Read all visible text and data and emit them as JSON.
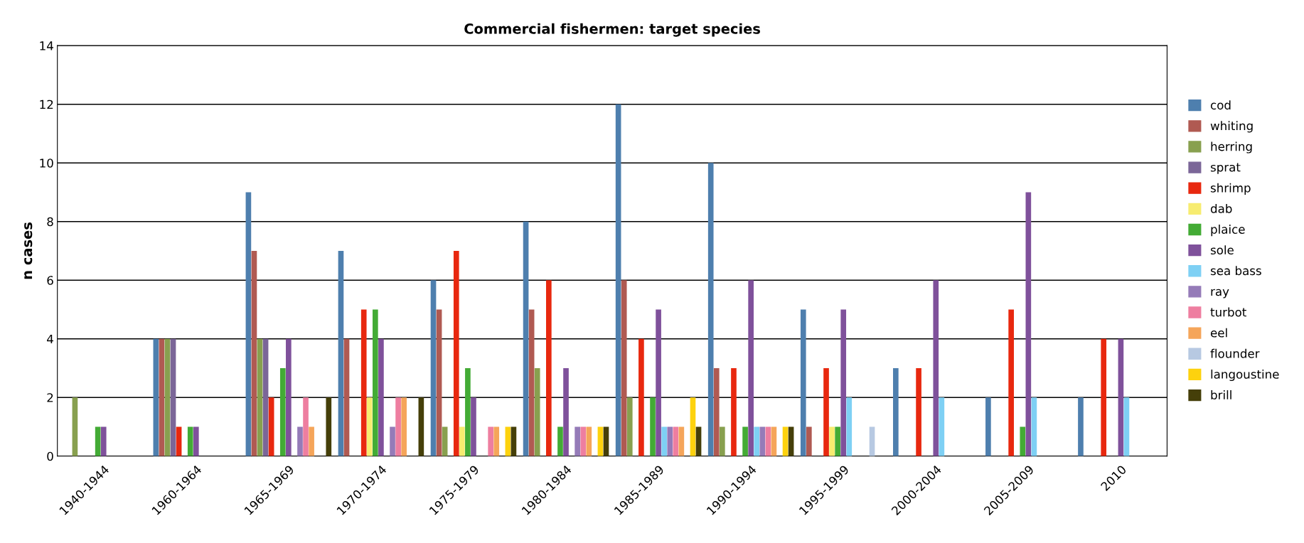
{
  "chart_data": {
    "type": "bar",
    "title": "Commercial fishermen: target species",
    "ylabel": "n cases",
    "categories": [
      "1940-1944",
      "1960-1964",
      "1965-1969",
      "1970-1974",
      "1975-1979",
      "1980-1984",
      "1985-1989",
      "1990-1994",
      "1995-1999",
      "2000-2004",
      "2005-2009",
      "2010"
    ],
    "ylim": [
      0,
      14
    ],
    "yticks": [
      0,
      2,
      4,
      6,
      8,
      10,
      12,
      14
    ],
    "grid": "y",
    "legend": "right",
    "series": [
      {
        "name": "cod",
        "color": "#4e7fae",
        "values": [
          null,
          4,
          9,
          7,
          6,
          8,
          12,
          10,
          5,
          3,
          2,
          2
        ]
      },
      {
        "name": "whiting",
        "color": "#b05a52",
        "values": [
          null,
          4,
          7,
          4,
          5,
          5,
          6,
          3,
          1,
          null,
          null,
          null
        ]
      },
      {
        "name": "herring",
        "color": "#88a04f",
        "values": [
          2,
          4,
          4,
          null,
          1,
          3,
          2,
          1,
          null,
          null,
          null,
          null
        ]
      },
      {
        "name": "sprat",
        "color": "#7b6698",
        "values": [
          null,
          4,
          4,
          null,
          null,
          null,
          null,
          null,
          null,
          null,
          null,
          null
        ]
      },
      {
        "name": "shrimp",
        "color": "#e8280f",
        "values": [
          null,
          1,
          2,
          5,
          7,
          6,
          4,
          3,
          3,
          3,
          5,
          4
        ]
      },
      {
        "name": "dab",
        "color": "#f7ec70",
        "values": [
          null,
          null,
          null,
          2,
          1,
          null,
          null,
          null,
          1,
          null,
          null,
          null
        ]
      },
      {
        "name": "plaice",
        "color": "#43ab35",
        "values": [
          1,
          1,
          3,
          5,
          3,
          1,
          2,
          1,
          1,
          null,
          1,
          null
        ]
      },
      {
        "name": "sole",
        "color": "#7f519b",
        "values": [
          1,
          1,
          4,
          4,
          2,
          3,
          5,
          6,
          5,
          6,
          9,
          4
        ]
      },
      {
        "name": "sea bass",
        "color": "#7ed0f4",
        "values": [
          null,
          null,
          null,
          null,
          null,
          null,
          1,
          1,
          2,
          2,
          2,
          2
        ]
      },
      {
        "name": "ray",
        "color": "#957bb8",
        "values": [
          null,
          null,
          1,
          1,
          null,
          1,
          1,
          1,
          null,
          null,
          null,
          null
        ]
      },
      {
        "name": "turbot",
        "color": "#ee7ea0",
        "values": [
          null,
          null,
          2,
          2,
          1,
          1,
          1,
          1,
          null,
          null,
          null,
          null
        ]
      },
      {
        "name": "eel",
        "color": "#f5a55a",
        "values": [
          null,
          null,
          1,
          2,
          1,
          1,
          1,
          1,
          null,
          null,
          null,
          null
        ]
      },
      {
        "name": "flounder",
        "color": "#b7c9e2",
        "values": [
          null,
          null,
          null,
          null,
          null,
          null,
          null,
          null,
          1,
          null,
          null,
          null
        ]
      },
      {
        "name": "langoustine",
        "color": "#fdd20e",
        "values": [
          null,
          null,
          null,
          null,
          1,
          1,
          2,
          1,
          null,
          null,
          null,
          null
        ]
      },
      {
        "name": "brill",
        "color": "#453f09",
        "values": [
          null,
          null,
          2,
          2,
          1,
          1,
          1,
          1,
          null,
          null,
          null,
          null
        ]
      }
    ]
  }
}
